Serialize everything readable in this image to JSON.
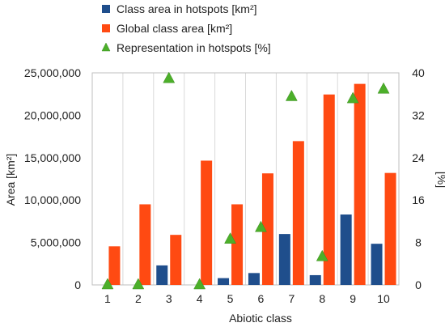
{
  "chart_data": {
    "type": "bar",
    "categories": [
      "1",
      "2",
      "3",
      "4",
      "5",
      "6",
      "7",
      "8",
      "9",
      "10"
    ],
    "series": [
      {
        "name": "Class area in hotspots [km²]",
        "kind": "bar",
        "axis": "left",
        "color": "#1f4e8c",
        "values": [
          0,
          0,
          2300000,
          0,
          800000,
          1400000,
          6000000,
          1150000,
          8300000,
          4850000
        ]
      },
      {
        "name": "Global class area [km²]",
        "kind": "bar",
        "axis": "left",
        "color": "#ff4a12",
        "values": [
          4550000,
          9500000,
          5900000,
          14650000,
          9500000,
          13150000,
          16950000,
          22450000,
          23700000,
          13200000
        ]
      },
      {
        "name": "Representation in hotspots [%]",
        "kind": "marker",
        "marker": "triangle",
        "axis": "right",
        "color": "#4caf2a",
        "values": [
          0,
          0,
          38.9,
          0,
          8.6,
          10.8,
          35.5,
          5.3,
          35.1,
          36.9
        ]
      }
    ],
    "xlabel": "Abiotic class",
    "ylabel": "Area [km²]",
    "y2label": "[%]",
    "ylim": [
      0,
      25000000
    ],
    "y2lim": [
      0,
      40
    ],
    "yticks": [
      "0",
      "5,000,000",
      "10,000,000",
      "15,000,000",
      "20,000,000",
      "25,000,000"
    ],
    "y2ticks": [
      "0",
      "8",
      "16",
      "24",
      "32",
      "40"
    ],
    "grid": "vertical",
    "legend": "top"
  }
}
